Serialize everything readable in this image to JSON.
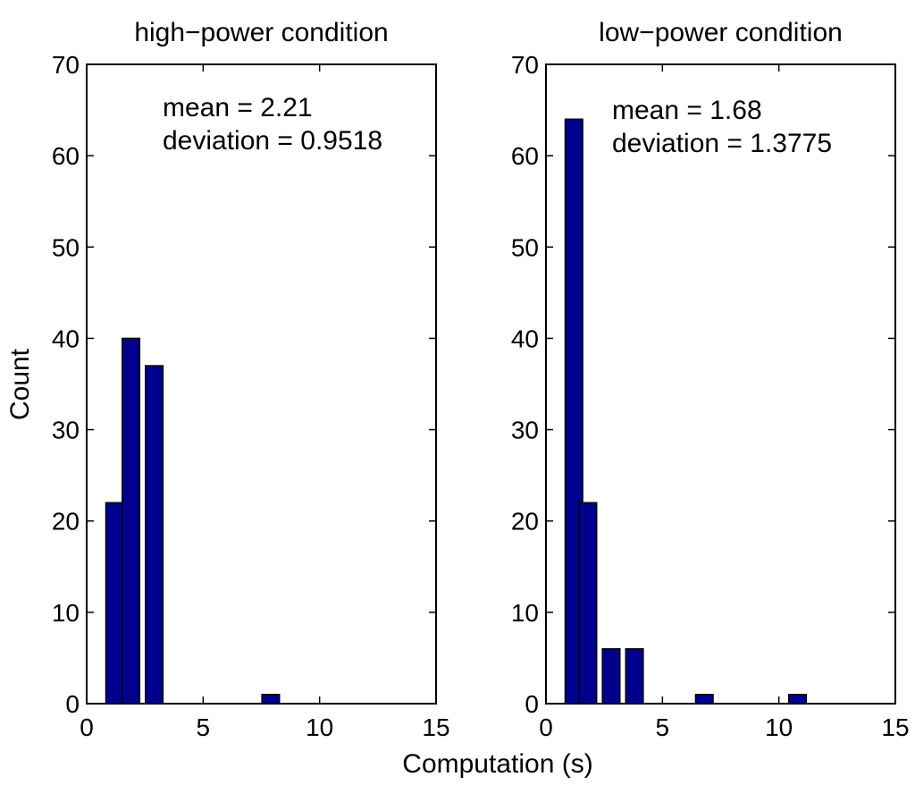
{
  "colors": {
    "bar_fill": "#00008f",
    "axis": "#000000",
    "background": "#ffffff"
  },
  "figure": {
    "ylabel": "Count",
    "xlabel": "Computation (s)"
  },
  "chart_data": [
    {
      "type": "bar",
      "title": "high−power condition",
      "xlabel": "Computation (s)",
      "ylabel": "Count",
      "xlim": [
        0,
        15
      ],
      "ylim": [
        0,
        70
      ],
      "xticks": [
        0,
        5,
        10,
        15
      ],
      "yticks": [
        0,
        10,
        20,
        30,
        40,
        50,
        60,
        70
      ],
      "grid": false,
      "annotations": [
        "mean = 2.21",
        "deviation = 0.9518"
      ],
      "x": [
        1.2,
        1.9,
        2.9,
        7.9
      ],
      "values": [
        22,
        40,
        37,
        1
      ]
    },
    {
      "type": "bar",
      "title": "low−power condition",
      "xlabel": "Computation (s)",
      "ylabel": "Count",
      "xlim": [
        0,
        15
      ],
      "ylim": [
        0,
        70
      ],
      "xticks": [
        0,
        5,
        10,
        15
      ],
      "yticks": [
        0,
        10,
        20,
        30,
        40,
        50,
        60,
        70
      ],
      "grid": false,
      "annotations": [
        "mean = 1.68",
        "deviation = 1.3775"
      ],
      "x": [
        1.2,
        1.8,
        2.8,
        3.8,
        6.8,
        10.8
      ],
      "values": [
        64,
        22,
        6,
        6,
        1,
        1
      ]
    }
  ]
}
